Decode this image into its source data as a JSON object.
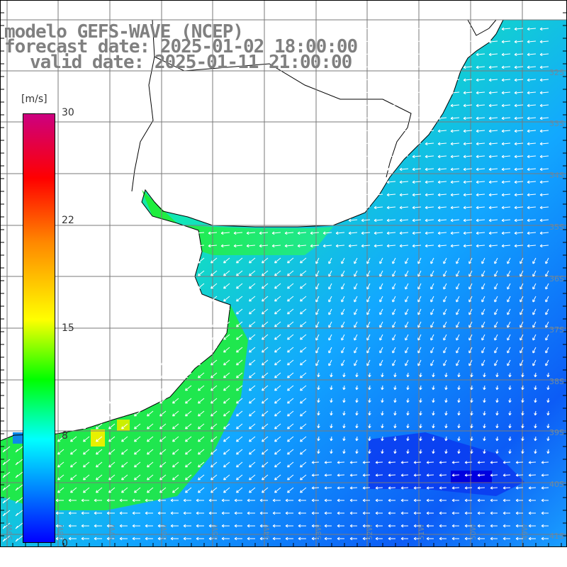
{
  "title": {
    "line1": "modelo GEFS-WAVE (NCEP)",
    "line2": "forecast date: 2025-01-02 18:00:00",
    "line3": "valid date: 2025-01-11 21:00:00"
  },
  "colorbar": {
    "unit": "[m/s]",
    "ticks": [
      "30",
      "22",
      "15",
      "8",
      "0"
    ],
    "colors": [
      "#cc0080",
      "#ff0000",
      "#ff8800",
      "#ffff00",
      "#00ff00",
      "#00ffff",
      "#0080ff",
      "#0000ff"
    ]
  },
  "grid": {
    "lat_labels": [
      "32S",
      "33S",
      "34S",
      "35S",
      "36S",
      "37S",
      "38S",
      "39S",
      "40S",
      "41S"
    ],
    "lon_labels": [
      "59W",
      "58W",
      "57W",
      "56W",
      "55W",
      "54W",
      "53W",
      "52W",
      "51W",
      "50W",
      "49W"
    ]
  },
  "field": {
    "variable": "wind speed",
    "range": [
      0,
      30
    ]
  }
}
